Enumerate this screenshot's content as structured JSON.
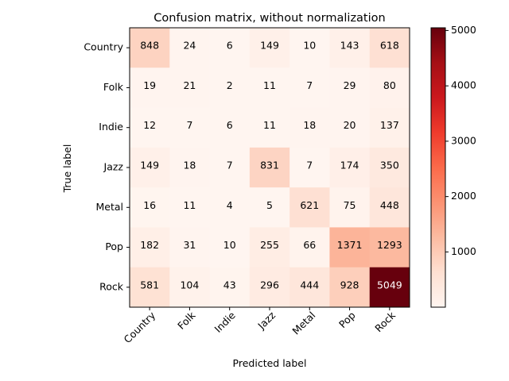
{
  "chart_data": {
    "type": "heatmap",
    "title": "Confusion matrix, without normalization",
    "xlabel": "Predicted label",
    "ylabel": "True label",
    "row_labels": [
      "Country",
      "Folk",
      "Indie",
      "Jazz",
      "Metal",
      "Pop",
      "Rock"
    ],
    "col_labels": [
      "Country",
      "Folk",
      "Indie",
      "Jazz",
      "Metal",
      "Pop",
      "Rock"
    ],
    "matrix": [
      [
        848,
        24,
        6,
        149,
        10,
        143,
        618
      ],
      [
        19,
        21,
        2,
        11,
        7,
        29,
        80
      ],
      [
        12,
        7,
        6,
        11,
        18,
        20,
        137
      ],
      [
        149,
        18,
        7,
        831,
        7,
        174,
        350
      ],
      [
        16,
        11,
        4,
        5,
        621,
        75,
        448
      ],
      [
        182,
        31,
        10,
        255,
        66,
        1371,
        1293
      ],
      [
        581,
        104,
        43,
        296,
        444,
        928,
        5049
      ]
    ],
    "colormap": "Reds",
    "colorbar": {
      "ticks": [
        1000,
        2000,
        3000,
        4000,
        5000
      ],
      "range": [
        2,
        5049
      ]
    },
    "x_tick_rotation_deg": 45,
    "grid": false
  }
}
